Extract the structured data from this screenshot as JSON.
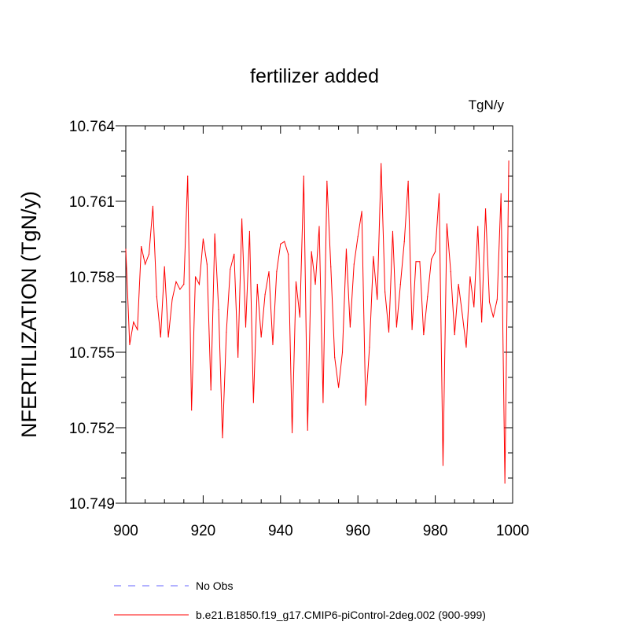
{
  "chart_data": {
    "type": "line",
    "title": "fertilizer added",
    "units": "TgN/y",
    "ylabel": "NFERTILIZATION  (TgN/y)",
    "xlabel": "",
    "xlim": [
      900,
      1000
    ],
    "ylim": [
      10.749,
      10.764
    ],
    "x_ticks": [
      900,
      920,
      940,
      960,
      980,
      1000
    ],
    "x_tick_labels": [
      "900",
      "920",
      "940",
      "960",
      "980",
      "1000"
    ],
    "y_ticks": [
      10.749,
      10.752,
      10.755,
      10.758,
      10.761,
      10.764
    ],
    "y_tick_labels": [
      "10.749",
      "10.752",
      "10.755",
      "10.758",
      "10.761",
      "10.764"
    ],
    "grid": false,
    "legend_position": "bottom",
    "series": [
      {
        "name": "No Obs",
        "color": "#6666ff",
        "dashed": true,
        "values": []
      },
      {
        "name": "b.e21.B1850.f19_g17.CMIP6-piControl-2deg.002 (900-999)",
        "color": "#ff0000",
        "dashed": false,
        "x_start": 900,
        "values": [
          10.7591,
          10.7553,
          10.7562,
          10.7559,
          10.7592,
          10.7585,
          10.7589,
          10.7608,
          10.7572,
          10.7556,
          10.7584,
          10.7556,
          10.7571,
          10.7578,
          10.7575,
          10.7577,
          10.762,
          10.7527,
          10.758,
          10.7577,
          10.7595,
          10.7585,
          10.7535,
          10.7597,
          10.7567,
          10.7516,
          10.7558,
          10.7583,
          10.7589,
          10.7548,
          10.7603,
          10.756,
          10.7598,
          10.753,
          10.7577,
          10.7556,
          10.7573,
          10.7582,
          10.7553,
          10.7582,
          10.7593,
          10.7594,
          10.7589,
          10.7518,
          10.7578,
          10.7564,
          10.762,
          10.7519,
          10.759,
          10.7577,
          10.76,
          10.753,
          10.7618,
          10.7584,
          10.7548,
          10.7536,
          10.755,
          10.7591,
          10.756,
          10.7585,
          10.7596,
          10.7606,
          10.7529,
          10.7552,
          10.7588,
          10.7571,
          10.7625,
          10.7574,
          10.7558,
          10.7598,
          10.756,
          10.7577,
          10.7594,
          10.7618,
          10.7559,
          10.7586,
          10.7586,
          10.7557,
          10.7572,
          10.7587,
          10.759,
          10.7613,
          10.7505,
          10.7601,
          10.7582,
          10.7557,
          10.7577,
          10.7565,
          10.7552,
          10.758,
          10.7568,
          10.76,
          10.7562,
          10.7607,
          10.757,
          10.7564,
          10.7571,
          10.7613,
          10.7498,
          10.7626
        ]
      }
    ]
  }
}
